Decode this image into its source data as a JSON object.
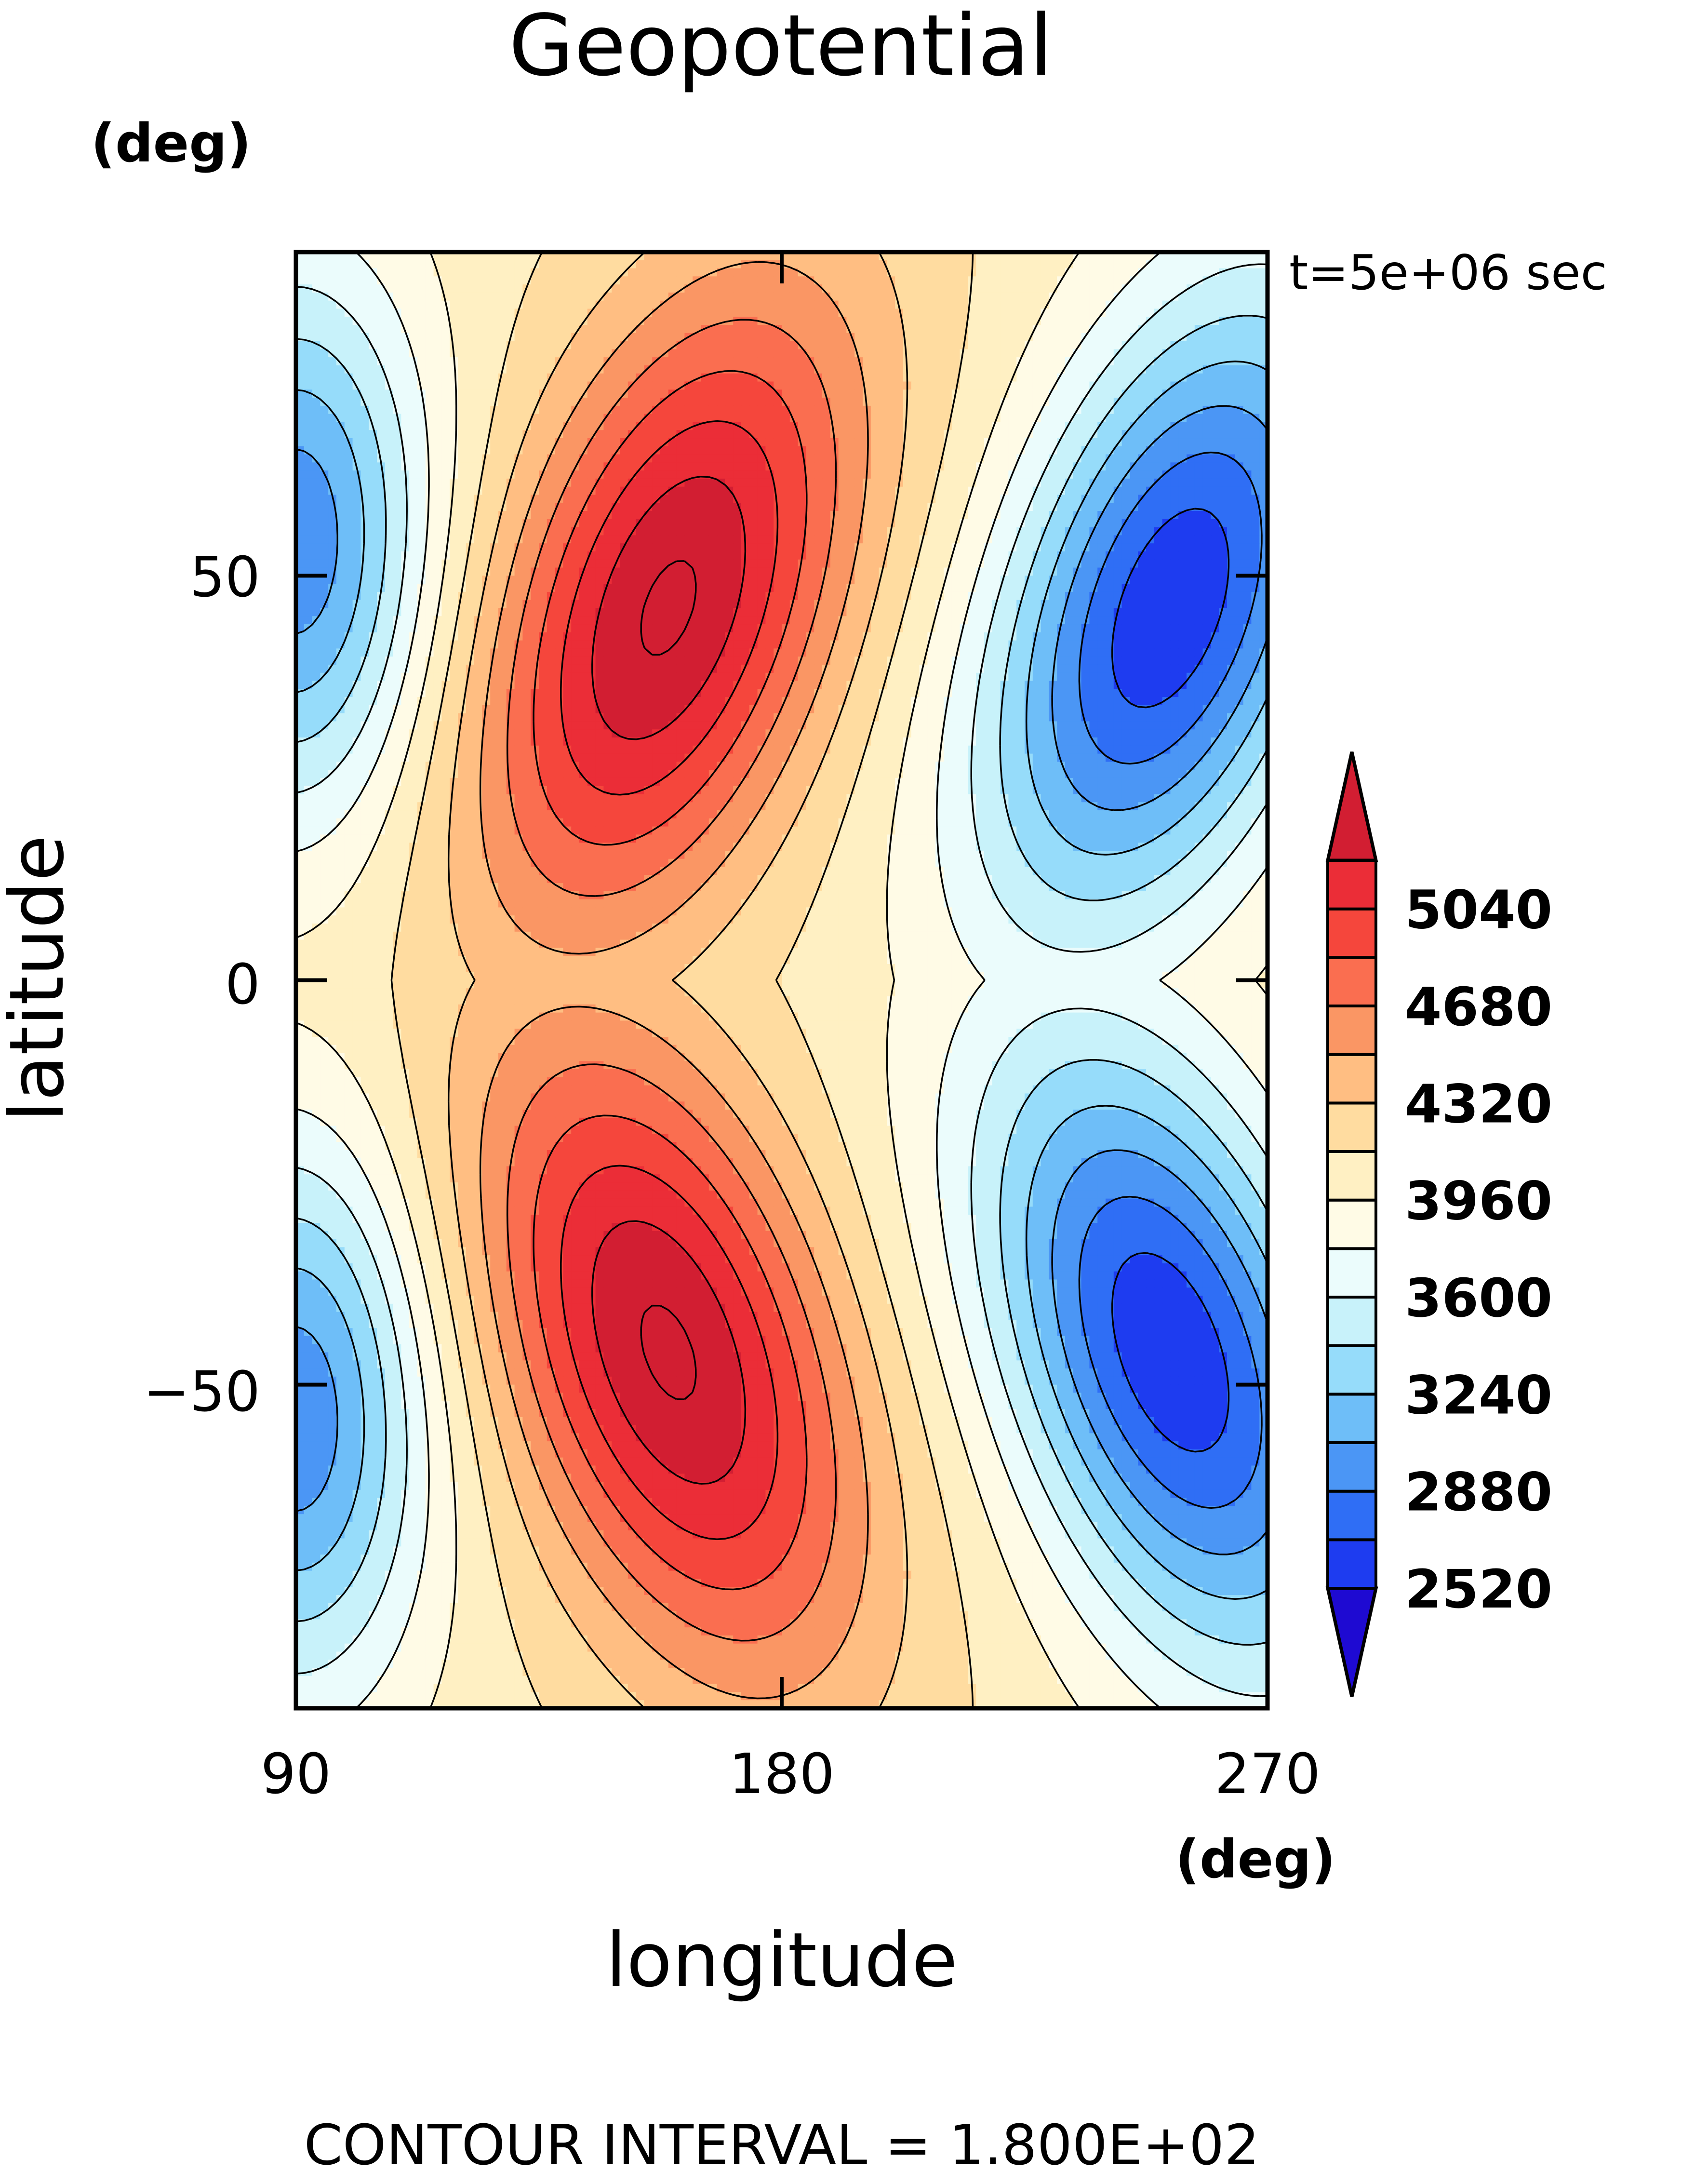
{
  "chart_data": {
    "type": "contour",
    "title": "Geopotential",
    "x_units": "(deg)",
    "y_units": "(deg)",
    "xlabel": "longitude",
    "ylabel": "latitude",
    "time_label": "t=5e+06 sec",
    "footer": "CONTOUR INTERVAL = 1.800E+02",
    "xlim": [
      90,
      270
    ],
    "ylim": [
      -90,
      90
    ],
    "x_ticks": [
      {
        "value": 90,
        "label": "90"
      },
      {
        "value": 180,
        "label": "180"
      },
      {
        "value": 270,
        "label": "270"
      }
    ],
    "y_ticks": [
      {
        "value": 50,
        "label": "50"
      },
      {
        "value": 0,
        "label": "0"
      },
      {
        "value": -50,
        "label": "−50"
      }
    ],
    "field": {
      "background": 3900,
      "min_shown": 2340,
      "max_shown": 5220,
      "features": [
        {
          "kind": "high",
          "lon": 159,
          "lat": 46,
          "peak": 5250
        },
        {
          "kind": "high",
          "lon": 159,
          "lat": -46,
          "peak": 5250
        },
        {
          "kind": "low",
          "lon": 252,
          "lat": 46,
          "trough": 2380
        },
        {
          "kind": "low",
          "lon": 252,
          "lat": -46,
          "trough": 2380
        },
        {
          "kind": "low",
          "lon": 90,
          "lat": 54,
          "trough": 2750
        },
        {
          "kind": "low",
          "lon": 90,
          "lat": -54,
          "trough": 2750
        }
      ]
    },
    "contour_interval": 180,
    "colorbar": {
      "levels": [
        2340,
        2520,
        2700,
        2880,
        3060,
        3240,
        3420,
        3600,
        3780,
        3960,
        4140,
        4320,
        4500,
        4680,
        4860,
        5040,
        5220
      ],
      "tick_labels": [
        "5040",
        "4680",
        "4320",
        "3960",
        "3600",
        "3240",
        "2880",
        "2520"
      ],
      "tick_values": [
        5040,
        4680,
        4320,
        3960,
        3600,
        3240,
        2880,
        2520
      ],
      "colors": [
        "#1e0ad2",
        "#1e3cf0",
        "#2f6ef5",
        "#4b96f5",
        "#6ebef8",
        "#96dcfa",
        "#c8f2fa",
        "#ebfcfc",
        "#fffbe6",
        "#fff0c3",
        "#ffdca0",
        "#ffbe82",
        "#fa9664",
        "#fa6e50",
        "#f5463c",
        "#eb2d37",
        "#d21e32"
      ]
    }
  }
}
